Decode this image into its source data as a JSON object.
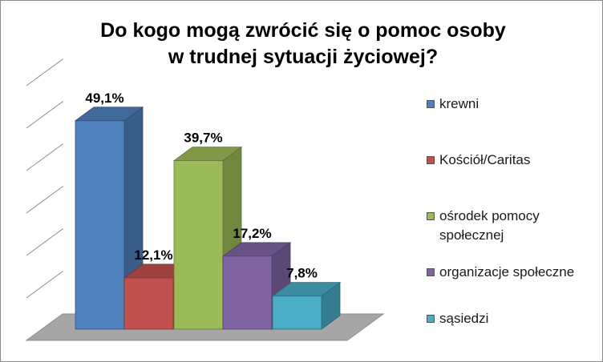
{
  "chart_data": {
    "type": "bar",
    "title": [
      "Do kogo mogą zwrócić się o pomoc osoby",
      "w trudnej sytuacji życiowej?"
    ],
    "categories": [
      "krewni",
      "Kościół/Caritas",
      "ośrodek pomocy społecznej",
      "organizacje społeczne",
      "sąsiedzi"
    ],
    "values": [
      49.1,
      12.1,
      39.7,
      17.2,
      7.8
    ],
    "data_labels": [
      "49,1%",
      "12,1%",
      "39,7%",
      "17,2%",
      "7,8%"
    ],
    "colors": [
      "#4f81bd",
      "#c0504d",
      "#9bbb59",
      "#8064a2",
      "#4bacc6"
    ],
    "ylim": [
      0,
      60
    ],
    "grid": true,
    "three_d": true,
    "legend_position": "right",
    "legend": [
      {
        "lines": [
          "krewni"
        ]
      },
      {
        "lines": [
          "Kościół/Caritas"
        ]
      },
      {
        "lines": [
          "ośrodek pomocy",
          "społecznej"
        ]
      },
      {
        "lines": [
          "organizacje społeczne"
        ]
      },
      {
        "lines": [
          "sąsiedzi"
        ]
      }
    ]
  }
}
